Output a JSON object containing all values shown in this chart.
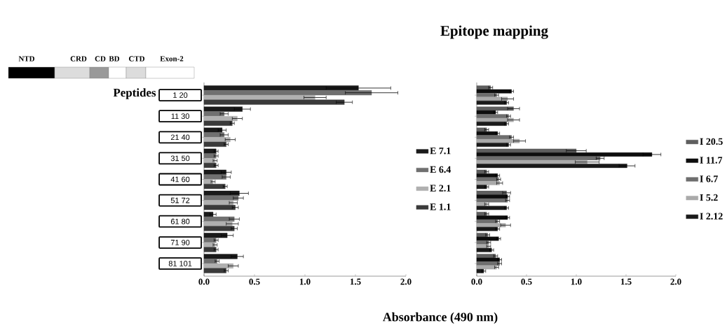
{
  "chart_data": [
    {
      "type": "bar",
      "orientation": "horizontal",
      "xlabel": "Absorbance (490 nm)",
      "annotations": [
        "NTD",
        "CRD",
        "CD",
        "BD",
        "CTD",
        "Exon-2",
        "Peptides",
        "Epitope mapping"
      ],
      "categories": [
        "1 20",
        "11 30",
        "21 40",
        "31 50",
        "41 60",
        "51 72",
        "61 80",
        "71 90",
        "81 101"
      ],
      "series": [
        {
          "name": "E 7.1",
          "color": "#1a1a1a",
          "values": [
            1.53,
            0.38,
            0.18,
            0.12,
            0.22,
            0.35,
            0.09,
            0.23,
            0.33
          ],
          "errors": [
            0.32,
            0.08,
            0.04,
            0.02,
            0.05,
            0.09,
            0.03,
            0.06,
            0.06
          ]
        },
        {
          "name": "E 6.4",
          "color": "#707070",
          "values": [
            1.66,
            0.2,
            0.2,
            0.12,
            0.22,
            0.34,
            0.3,
            0.12,
            0.13
          ],
          "errors": [
            0.26,
            0.04,
            0.04,
            0.02,
            0.04,
            0.05,
            0.05,
            0.02,
            0.02
          ]
        },
        {
          "name": "E 2.1",
          "color": "#b0b0b0",
          "values": [
            1.1,
            0.33,
            0.26,
            0.11,
            0.09,
            0.29,
            0.28,
            0.11,
            0.29
          ],
          "errors": [
            0.11,
            0.05,
            0.05,
            0.02,
            0.02,
            0.04,
            0.06,
            0.02,
            0.05
          ]
        },
        {
          "name": "E 1.1",
          "color": "#3a3a3a",
          "values": [
            1.39,
            0.28,
            0.22,
            0.12,
            0.21,
            0.31,
            0.3,
            0.12,
            0.22
          ],
          "errors": [
            0.08,
            0.02,
            0.02,
            0.02,
            0.02,
            0.03,
            0.03,
            0.02,
            0.02
          ]
        }
      ],
      "xlim": [
        0,
        2.0
      ],
      "xticks": [
        {
          "value": 0,
          "label": "0.0"
        },
        {
          "value": 0.5,
          "label": "0.5"
        },
        {
          "value": 1.0,
          "label": "1.0"
        },
        {
          "value": 1.5,
          "label": "1.5"
        },
        {
          "value": 2.0,
          "label": "2.0"
        }
      ],
      "legend": "right"
    },
    {
      "type": "bar",
      "orientation": "horizontal",
      "categories": [
        null,
        null,
        null,
        null,
        null,
        null,
        null,
        null,
        null
      ],
      "series": [
        {
          "name": "I 20.5",
          "color": "#5e5e5e",
          "values": [
            0.14,
            0.37,
            0.1,
            1.0,
            0.1,
            0.3,
            0.1,
            0.11,
            0.19
          ],
          "errors": [
            0.02,
            0.06,
            0.02,
            0.1,
            0.02,
            0.04,
            0.02,
            0.02,
            0.02
          ]
        },
        {
          "name": "I 11.7",
          "color": "#0d0d0d",
          "values": [
            0.35,
            0.19,
            0.21,
            1.76,
            0.21,
            0.31,
            0.31,
            0.22,
            0.23
          ],
          "errors": [
            0.02,
            0.02,
            0.02,
            0.09,
            0.02,
            0.02,
            0.02,
            0.02,
            0.02
          ]
        },
        {
          "name": "I 6.7",
          "color": "#6e6e6e",
          "values": [
            0.2,
            0.32,
            0.35,
            1.24,
            0.22,
            0.31,
            0.21,
            0.12,
            0.23
          ],
          "errors": [
            0.02,
            0.02,
            0.02,
            0.04,
            0.02,
            0.02,
            0.02,
            0.02,
            0.02
          ]
        },
        {
          "name": "I 5.2",
          "color": "#aaaaaa",
          "values": [
            0.31,
            0.37,
            0.43,
            1.11,
            0.23,
            0.1,
            0.29,
            0.12,
            0.2
          ],
          "errors": [
            0.06,
            0.06,
            0.06,
            0.12,
            0.03,
            0.02,
            0.05,
            0.02,
            0.02
          ]
        },
        {
          "name": "I 2.12",
          "color": "#1a1a1a",
          "values": [
            0.3,
            0.3,
            0.32,
            1.51,
            0.1,
            0.3,
            0.21,
            0.15,
            0.07
          ],
          "errors": [
            0.02,
            0.02,
            0.02,
            0.08,
            0.02,
            0.02,
            0.02,
            0.02,
            0.02
          ]
        }
      ],
      "xlim": [
        0,
        2.0
      ],
      "xticks": [
        {
          "value": 0,
          "label": "0.0"
        },
        {
          "value": 0.5,
          "label": "0.5"
        },
        {
          "value": 1.0,
          "label": "1.0"
        },
        {
          "value": 1.5,
          "label": "1.5"
        },
        {
          "value": 2.0,
          "label": "2.0"
        }
      ],
      "tick_labels": "x",
      "legend": "right"
    }
  ]
}
